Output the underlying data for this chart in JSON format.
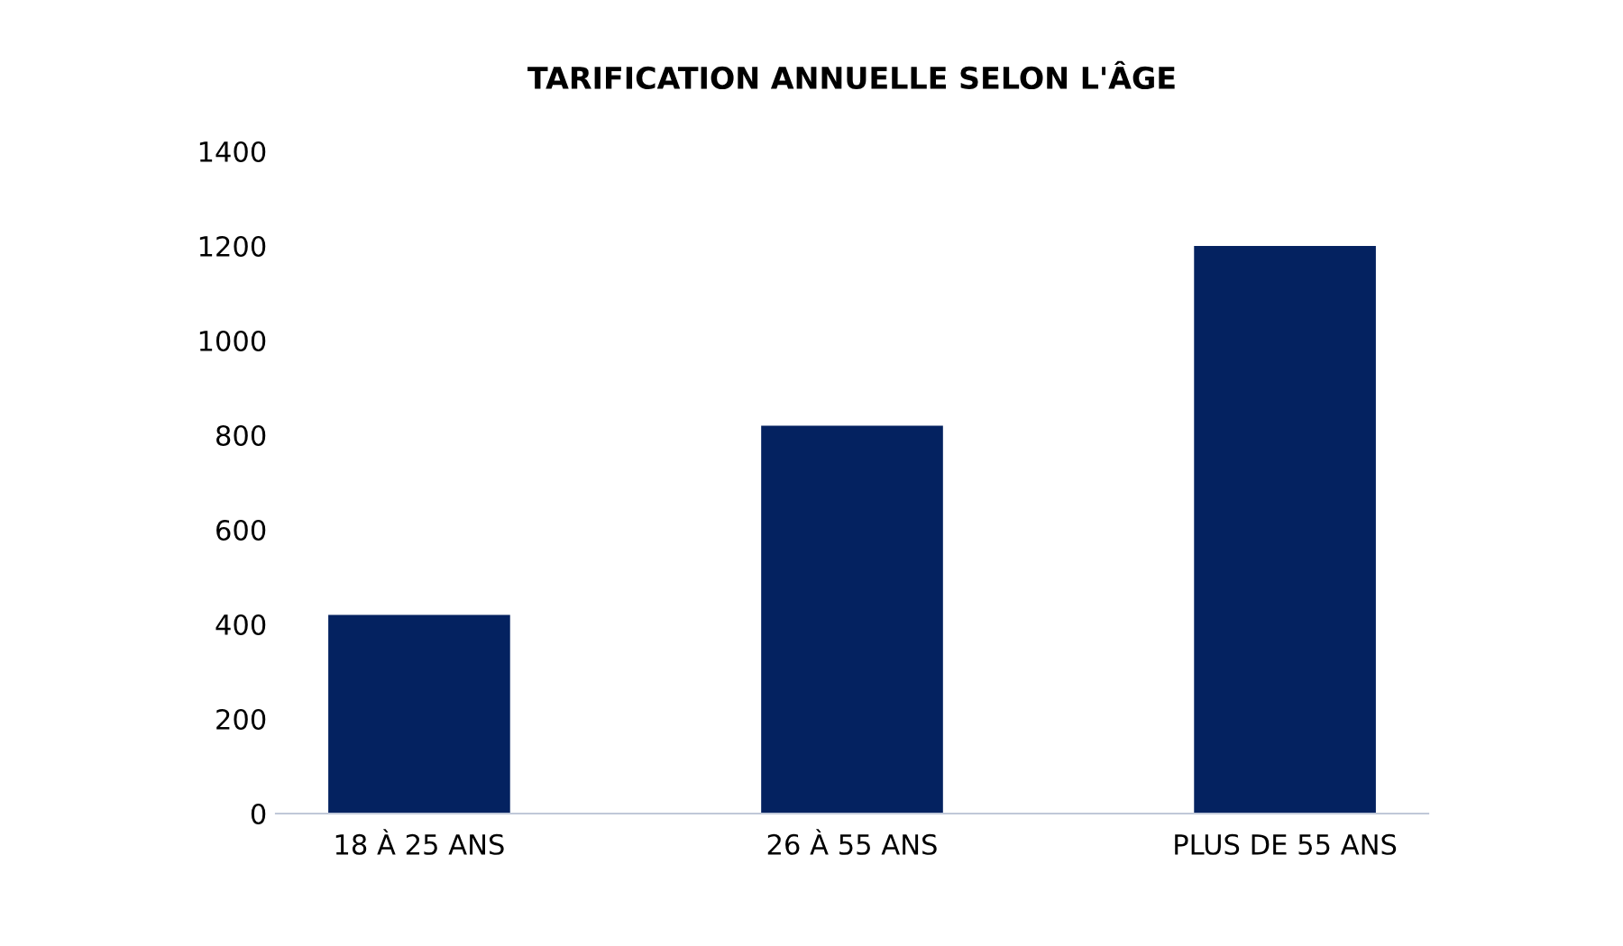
{
  "chart_data": {
    "type": "bar",
    "title": "TARIFICATION ANNUELLE SELON L'ÂGE",
    "categories": [
      "18 À 25 ANS",
      "26 À 55 ANS",
      "PLUS DE 55 ANS"
    ],
    "values": [
      420,
      820,
      1200
    ],
    "color": "#042260",
    "ylim": [
      0,
      1400
    ],
    "yticks": [
      0,
      200,
      400,
      600,
      800,
      1000,
      1200,
      1400
    ],
    "grid": false
  }
}
